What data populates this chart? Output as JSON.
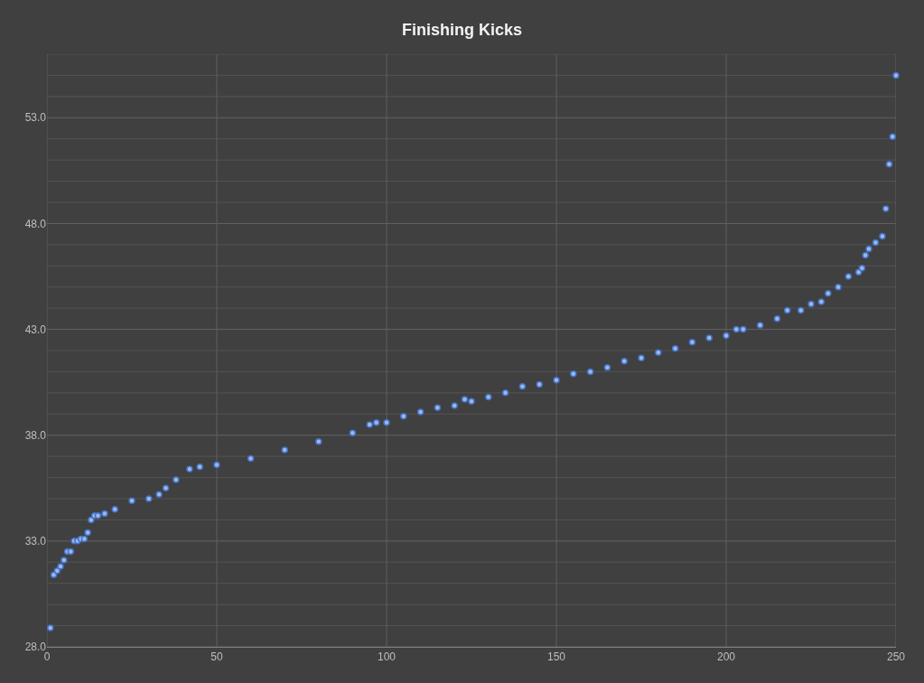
{
  "chart_data": {
    "type": "scatter",
    "title": "Finishing Kicks",
    "marker": "circle",
    "grid": true,
    "x": [
      1,
      2,
      3,
      4,
      5,
      6,
      7,
      8,
      9,
      10,
      11,
      12,
      13,
      14,
      15,
      17,
      20,
      25,
      30,
      33,
      35,
      38,
      42,
      45,
      50,
      60,
      70,
      80,
      90,
      95,
      97,
      100,
      105,
      110,
      115,
      120,
      123,
      125,
      130,
      135,
      140,
      145,
      150,
      155,
      160,
      165,
      170,
      175,
      180,
      185,
      190,
      195,
      200,
      203,
      205,
      210,
      215,
      218,
      222,
      225,
      228,
      230,
      233,
      236,
      239,
      240,
      241,
      242,
      244,
      246,
      247,
      248,
      249,
      250
    ],
    "series": [
      {
        "color": "#4472c4",
        "values": [
          28.9,
          31.4,
          31.6,
          31.8,
          32.1,
          32.5,
          32.5,
          33.0,
          33.0,
          33.1,
          33.1,
          33.4,
          34.0,
          34.2,
          34.2,
          34.3,
          34.5,
          34.9,
          35.0,
          35.2,
          35.5,
          35.9,
          36.4,
          36.5,
          36.6,
          36.9,
          37.3,
          37.7,
          38.1,
          38.5,
          38.6,
          38.6,
          38.9,
          39.1,
          39.3,
          39.4,
          39.7,
          39.6,
          39.8,
          40.0,
          40.3,
          40.4,
          40.6,
          40.9,
          41.0,
          41.2,
          41.5,
          41.65,
          41.9,
          42.1,
          42.4,
          42.6,
          42.7,
          43.0,
          43.0,
          43.2,
          43.5,
          43.9,
          43.9,
          44.2,
          44.3,
          44.7,
          45.0,
          45.5,
          45.7,
          45.9,
          46.5,
          46.8,
          47.1,
          47.4,
          48.7,
          50.8,
          52.1,
          55.0
        ]
      }
    ],
    "xlim": [
      0,
      250
    ],
    "xticks": [
      0,
      50,
      100,
      150,
      200,
      250
    ],
    "ylim": [
      28,
      56
    ],
    "yticks": [
      {
        "value": 28,
        "label": "28.0"
      },
      {
        "value": 29,
        "label": null
      },
      {
        "value": 30,
        "label": null
      },
      {
        "value": 31,
        "label": null
      },
      {
        "value": 32,
        "label": null
      },
      {
        "value": 33,
        "label": "33.0"
      },
      {
        "value": 34,
        "label": null
      },
      {
        "value": 35,
        "label": null
      },
      {
        "value": 36,
        "label": null
      },
      {
        "value": 37,
        "label": null
      },
      {
        "value": 38,
        "label": "38.0"
      },
      {
        "value": 39,
        "label": null
      },
      {
        "value": 40,
        "label": null
      },
      {
        "value": 41,
        "label": null
      },
      {
        "value": 42,
        "label": null
      },
      {
        "value": 43,
        "label": "43.0"
      },
      {
        "value": 44,
        "label": null
      },
      {
        "value": 45,
        "label": null
      },
      {
        "value": 46,
        "label": null
      },
      {
        "value": 47,
        "label": null
      },
      {
        "value": 48,
        "label": "48.0"
      },
      {
        "value": 49,
        "label": null
      },
      {
        "value": 50,
        "label": null
      },
      {
        "value": 51,
        "label": null
      },
      {
        "value": 52,
        "label": null
      },
      {
        "value": 53,
        "label": "53.0"
      },
      {
        "value": 54,
        "label": null
      },
      {
        "value": 55,
        "label": null
      },
      {
        "value": 56,
        "label": null
      }
    ]
  }
}
